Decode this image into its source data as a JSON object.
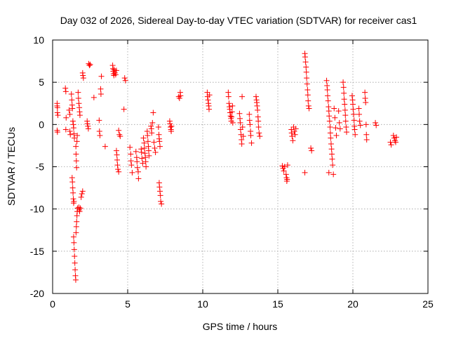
{
  "chart_data": {
    "type": "scatter",
    "title": "Day 032 of 2026, Sidereal Day-to-day VTEC variation (SDTVAR) for receiver cas1",
    "xlabel": "GPS time / hours",
    "ylabel": "SDTVAR / TECUs",
    "xlim": [
      0,
      25
    ],
    "ylim": [
      -20,
      10
    ],
    "x_ticks": [
      0,
      5,
      10,
      15,
      20,
      25
    ],
    "y_ticks": [
      -20,
      -15,
      -10,
      -5,
      0,
      5,
      10
    ],
    "x_tick_labels": [
      "0",
      "5",
      "10",
      "15",
      "20",
      "25"
    ],
    "y_tick_labels": [
      "-20",
      "-15",
      "-10",
      "-5",
      "0",
      "5",
      "10"
    ],
    "grid": true,
    "marker": "plus",
    "marker_color": "#ff0000",
    "series": [
      {
        "name": "SDTVAR",
        "points": [
          [
            0.3,
            2.5
          ],
          [
            0.3,
            2.2
          ],
          [
            0.32,
            2.0
          ],
          [
            0.32,
            1.4
          ],
          [
            0.35,
            1.1
          ],
          [
            0.3,
            -0.7
          ],
          [
            0.32,
            -0.9
          ],
          [
            0.85,
            4.3
          ],
          [
            0.88,
            3.9
          ],
          [
            0.9,
            0.8
          ],
          [
            0.88,
            -0.6
          ],
          [
            1.1,
            1.7
          ],
          [
            1.15,
            1.2
          ],
          [
            1.15,
            -0.8
          ],
          [
            1.18,
            -1.2
          ],
          [
            1.25,
            3.6
          ],
          [
            1.28,
            2.9
          ],
          [
            1.3,
            2.3
          ],
          [
            1.32,
            1.9
          ],
          [
            1.35,
            0.4
          ],
          [
            1.38,
            0.0
          ],
          [
            1.4,
            -0.4
          ],
          [
            1.42,
            -1.1
          ],
          [
            1.45,
            -1.6
          ],
          [
            1.3,
            -6.3
          ],
          [
            1.32,
            -6.8
          ],
          [
            1.34,
            -7.5
          ],
          [
            1.36,
            -8.1
          ],
          [
            1.38,
            -8.8
          ],
          [
            1.4,
            -9.3
          ],
          [
            1.42,
            -9.1
          ],
          [
            1.4,
            -13.3
          ],
          [
            1.42,
            -14.0
          ],
          [
            1.44,
            -14.8
          ],
          [
            1.46,
            -15.6
          ],
          [
            1.48,
            -16.4
          ],
          [
            1.5,
            -17.2
          ],
          [
            1.52,
            -17.9
          ],
          [
            1.54,
            -18.4
          ],
          [
            1.56,
            -12.8
          ],
          [
            1.58,
            -12.1
          ],
          [
            1.6,
            -11.5
          ],
          [
            1.62,
            -10.8
          ],
          [
            1.64,
            -10.3
          ],
          [
            1.66,
            -9.9
          ],
          [
            1.55,
            -2.6
          ],
          [
            1.56,
            -3.5
          ],
          [
            1.58,
            -4.3
          ],
          [
            1.6,
            -5.1
          ],
          [
            1.62,
            -2.0
          ],
          [
            1.64,
            -1.3
          ],
          [
            1.7,
            3.8
          ],
          [
            1.72,
            3.1
          ],
          [
            1.75,
            2.5
          ],
          [
            1.78,
            2.0
          ],
          [
            1.8,
            1.5
          ],
          [
            1.82,
            1.1
          ],
          [
            1.75,
            -9.8
          ],
          [
            1.78,
            -10.1
          ],
          [
            1.8,
            -10.3
          ],
          [
            1.85,
            -9.9
          ],
          [
            1.9,
            -8.6
          ],
          [
            1.95,
            -8.2
          ],
          [
            2.0,
            -7.9
          ],
          [
            2.0,
            6.1
          ],
          [
            2.02,
            5.8
          ],
          [
            2.05,
            5.5
          ],
          [
            2.4,
            7.2
          ],
          [
            2.45,
            7.0
          ],
          [
            2.5,
            7.1
          ],
          [
            2.3,
            0.4
          ],
          [
            2.32,
            0.1
          ],
          [
            2.35,
            -0.2
          ],
          [
            2.38,
            -0.5
          ],
          [
            2.75,
            3.2
          ],
          [
            3.1,
            0.5
          ],
          [
            3.12,
            -0.8
          ],
          [
            3.15,
            -1.3
          ],
          [
            3.2,
            4.2
          ],
          [
            3.22,
            3.6
          ],
          [
            3.25,
            5.7
          ],
          [
            3.5,
            -2.6
          ],
          [
            4.0,
            7.0
          ],
          [
            4.02,
            6.6
          ],
          [
            4.04,
            6.3
          ],
          [
            4.06,
            6.0
          ],
          [
            4.08,
            5.8
          ],
          [
            4.1,
            6.5
          ],
          [
            4.15,
            6.1
          ],
          [
            4.2,
            5.9
          ],
          [
            4.25,
            6.4
          ],
          [
            4.25,
            -3.1
          ],
          [
            4.28,
            -3.6
          ],
          [
            4.3,
            -4.2
          ],
          [
            4.32,
            -4.8
          ],
          [
            4.35,
            -5.3
          ],
          [
            4.4,
            -5.6
          ],
          [
            4.4,
            -0.7
          ],
          [
            4.45,
            -1.2
          ],
          [
            4.5,
            -1.4
          ],
          [
            4.8,
            5.5
          ],
          [
            4.85,
            5.2
          ],
          [
            4.75,
            1.8
          ],
          [
            5.15,
            -2.7
          ],
          [
            5.2,
            -3.5
          ],
          [
            5.22,
            -4.3
          ],
          [
            5.25,
            -4.8
          ],
          [
            5.3,
            -5.7
          ],
          [
            5.55,
            -3.2
          ],
          [
            5.6,
            -3.9
          ],
          [
            5.62,
            -4.4
          ],
          [
            5.65,
            -5.1
          ],
          [
            5.7,
            -5.6
          ],
          [
            5.72,
            -6.4
          ],
          [
            5.9,
            -2.9
          ],
          [
            5.92,
            -3.3
          ],
          [
            5.95,
            -4.0
          ],
          [
            6.0,
            -4.6
          ],
          [
            6.05,
            -1.6
          ],
          [
            6.1,
            -2.2
          ],
          [
            6.12,
            -2.8
          ],
          [
            6.15,
            -3.4
          ],
          [
            6.18,
            -3.9
          ],
          [
            6.2,
            -4.4
          ],
          [
            6.22,
            -5.0
          ],
          [
            6.3,
            -0.8
          ],
          [
            6.32,
            -1.3
          ],
          [
            6.35,
            -2.0
          ],
          [
            6.38,
            -2.6
          ],
          [
            6.4,
            -3.1
          ],
          [
            6.42,
            -3.7
          ],
          [
            6.55,
            -0.2
          ],
          [
            6.58,
            -0.5
          ],
          [
            6.6,
            -1.0
          ],
          [
            6.65,
            0.2
          ],
          [
            6.7,
            1.4
          ],
          [
            6.75,
            -2.1
          ],
          [
            6.8,
            -2.8
          ],
          [
            6.85,
            -3.3
          ],
          [
            7.05,
            -0.3
          ],
          [
            7.08,
            -1.2
          ],
          [
            7.1,
            -1.7
          ],
          [
            7.12,
            -2.0
          ],
          [
            7.15,
            -2.6
          ],
          [
            7.1,
            -6.9
          ],
          [
            7.12,
            -7.4
          ],
          [
            7.15,
            -7.9
          ],
          [
            7.18,
            -8.4
          ],
          [
            7.2,
            -9.1
          ],
          [
            7.25,
            -9.4
          ],
          [
            7.8,
            0.4
          ],
          [
            7.82,
            0.1
          ],
          [
            7.85,
            -0.3
          ],
          [
            7.88,
            -0.6
          ],
          [
            7.9,
            -0.8
          ],
          [
            7.92,
            -0.2
          ],
          [
            8.4,
            3.3
          ],
          [
            8.45,
            3.1
          ],
          [
            8.5,
            3.8
          ],
          [
            8.52,
            3.4
          ],
          [
            10.3,
            3.8
          ],
          [
            10.32,
            3.3
          ],
          [
            10.35,
            2.9
          ],
          [
            10.38,
            2.5
          ],
          [
            10.4,
            2.2
          ],
          [
            10.42,
            1.8
          ],
          [
            10.45,
            3.5
          ],
          [
            11.7,
            3.8
          ],
          [
            11.72,
            3.3
          ],
          [
            11.75,
            2.5
          ],
          [
            11.78,
            2.1
          ],
          [
            11.8,
            1.8
          ],
          [
            11.82,
            1.4
          ],
          [
            11.85,
            1.0
          ],
          [
            11.88,
            0.7
          ],
          [
            11.9,
            0.4
          ],
          [
            11.92,
            0.9
          ],
          [
            11.95,
            1.5
          ],
          [
            11.98,
            2.2
          ],
          [
            12.0,
            0.2
          ],
          [
            12.45,
            1.3
          ],
          [
            12.48,
            0.7
          ],
          [
            12.5,
            0.2
          ],
          [
            12.52,
            -0.6
          ],
          [
            12.55,
            -1.2
          ],
          [
            12.58,
            -1.8
          ],
          [
            12.6,
            -2.3
          ],
          [
            12.62,
            3.3
          ],
          [
            12.65,
            -0.3
          ],
          [
            12.7,
            -1.4
          ],
          [
            13.1,
            1.2
          ],
          [
            13.12,
            0.5
          ],
          [
            13.15,
            0.0
          ],
          [
            13.18,
            -0.8
          ],
          [
            13.2,
            -1.3
          ],
          [
            13.25,
            -2.2
          ],
          [
            13.55,
            3.3
          ],
          [
            13.58,
            2.9
          ],
          [
            13.6,
            2.6
          ],
          [
            13.62,
            2.2
          ],
          [
            13.65,
            1.7
          ],
          [
            13.68,
            0.9
          ],
          [
            13.7,
            0.4
          ],
          [
            13.72,
            -0.3
          ],
          [
            13.75,
            -1.0
          ],
          [
            13.8,
            -1.4
          ],
          [
            15.3,
            -4.9
          ],
          [
            15.35,
            -5.2
          ],
          [
            15.4,
            -5.5
          ],
          [
            15.45,
            -5.0
          ],
          [
            15.55,
            -5.9
          ],
          [
            15.58,
            -6.3
          ],
          [
            15.6,
            -6.7
          ],
          [
            15.62,
            -6.5
          ],
          [
            15.65,
            -4.8
          ],
          [
            15.9,
            -0.6
          ],
          [
            15.92,
            -1.0
          ],
          [
            15.95,
            -1.4
          ],
          [
            16.0,
            -1.9
          ],
          [
            16.05,
            -0.3
          ],
          [
            16.1,
            -0.8
          ],
          [
            16.15,
            -1.2
          ],
          [
            16.2,
            -0.5
          ],
          [
            16.8,
            8.4
          ],
          [
            16.82,
            8.0
          ],
          [
            16.85,
            7.4
          ],
          [
            16.88,
            6.8
          ],
          [
            16.9,
            6.2
          ],
          [
            16.92,
            5.5
          ],
          [
            16.95,
            4.8
          ],
          [
            16.98,
            4.1
          ],
          [
            17.0,
            3.5
          ],
          [
            17.02,
            2.8
          ],
          [
            17.05,
            2.2
          ],
          [
            17.08,
            1.9
          ],
          [
            16.8,
            -5.7
          ],
          [
            17.2,
            -2.8
          ],
          [
            17.25,
            -3.1
          ],
          [
            18.25,
            5.2
          ],
          [
            18.28,
            4.6
          ],
          [
            18.3,
            4.1
          ],
          [
            18.32,
            3.4
          ],
          [
            18.35,
            2.8
          ],
          [
            18.38,
            2.1
          ],
          [
            18.4,
            1.6
          ],
          [
            18.42,
            1.0
          ],
          [
            18.45,
            0.4
          ],
          [
            18.48,
            -0.3
          ],
          [
            18.5,
            -1.0
          ],
          [
            18.52,
            -1.6
          ],
          [
            18.55,
            -2.3
          ],
          [
            18.58,
            -2.9
          ],
          [
            18.6,
            -3.5
          ],
          [
            18.62,
            -4.1
          ],
          [
            18.65,
            -4.8
          ],
          [
            18.4,
            -5.7
          ],
          [
            18.7,
            -5.9
          ],
          [
            18.75,
            1.9
          ],
          [
            18.8,
            0.8
          ],
          [
            18.85,
            -0.4
          ],
          [
            18.9,
            -1.3
          ],
          [
            19.05,
            1.6
          ],
          [
            19.1,
            0.2
          ],
          [
            19.15,
            -0.5
          ],
          [
            19.35,
            5.0
          ],
          [
            19.38,
            4.4
          ],
          [
            19.4,
            3.7
          ],
          [
            19.42,
            3.0
          ],
          [
            19.45,
            2.4
          ],
          [
            19.48,
            1.7
          ],
          [
            19.5,
            1.1
          ],
          [
            19.52,
            0.4
          ],
          [
            19.55,
            -0.3
          ],
          [
            19.58,
            -0.9
          ],
          [
            19.95,
            3.4
          ],
          [
            19.98,
            2.9
          ],
          [
            20.0,
            2.4
          ],
          [
            20.02,
            1.8
          ],
          [
            20.05,
            1.2
          ],
          [
            20.08,
            0.5
          ],
          [
            20.1,
            -0.2
          ],
          [
            20.12,
            -0.6
          ],
          [
            20.15,
            -1.2
          ],
          [
            20.4,
            1.9
          ],
          [
            20.42,
            1.2
          ],
          [
            20.45,
            0.4
          ],
          [
            20.5,
            -0.1
          ],
          [
            20.8,
            3.8
          ],
          [
            20.82,
            3.1
          ],
          [
            20.85,
            2.6
          ],
          [
            20.88,
            0.0
          ],
          [
            20.9,
            -1.2
          ],
          [
            20.92,
            -1.8
          ],
          [
            21.5,
            0.2
          ],
          [
            21.55,
            -0.1
          ],
          [
            22.5,
            -2.1
          ],
          [
            22.55,
            -2.4
          ],
          [
            22.7,
            -1.3
          ],
          [
            22.75,
            -1.6
          ],
          [
            22.8,
            -1.9
          ],
          [
            22.85,
            -2.1
          ],
          [
            22.9,
            -1.5
          ]
        ]
      }
    ]
  }
}
